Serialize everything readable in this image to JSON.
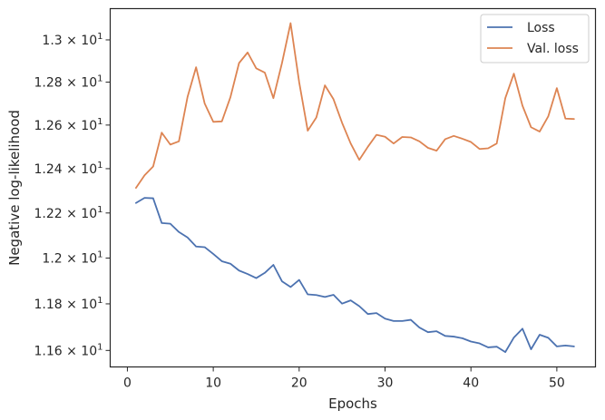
{
  "chart_data": {
    "type": "line",
    "title": "",
    "xlabel": "Epochs",
    "ylabel": "Negative log-likelihood",
    "xlim": [
      -2,
      54.5
    ],
    "ylim": [
      11.53,
      13.15
    ],
    "y_scale": "log",
    "grid": false,
    "legend_position": "top-right",
    "x_ticks": [
      0,
      10,
      20,
      30,
      40,
      50
    ],
    "x_tick_labels": [
      "0",
      "10",
      "20",
      "30",
      "40",
      "50"
    ],
    "y_ticks": [
      11.6,
      11.8,
      12.0,
      12.2,
      12.4,
      12.6,
      12.8,
      13.0
    ],
    "y_tick_mantissas": [
      "1.16",
      "1.18",
      "1.2",
      "1.22",
      "1.24",
      "1.26",
      "1.28",
      "1.3"
    ],
    "y_tick_base": "10",
    "y_tick_exp": "1",
    "y_tick_times": "×",
    "x": [
      1,
      2,
      3,
      4,
      5,
      6,
      7,
      8,
      9,
      10,
      11,
      12,
      13,
      14,
      15,
      16,
      17,
      18,
      19,
      20,
      21,
      22,
      23,
      24,
      25,
      26,
      27,
      28,
      29,
      30,
      31,
      32,
      33,
      34,
      35,
      36,
      37,
      38,
      39,
      40,
      41,
      42,
      43,
      44,
      45,
      46,
      47,
      48,
      49,
      50,
      51,
      52
    ],
    "series": [
      {
        "name": "Loss",
        "color": "#4c72b0",
        "values": [
          12.245,
          12.268,
          12.266,
          12.155,
          12.152,
          12.115,
          12.091,
          12.051,
          12.048,
          12.018,
          11.986,
          11.975,
          11.945,
          11.93,
          11.912,
          11.935,
          11.97,
          11.898,
          11.873,
          11.904,
          11.841,
          11.838,
          11.83,
          11.839,
          11.801,
          11.815,
          11.79,
          11.756,
          11.76,
          11.736,
          11.726,
          11.726,
          11.731,
          11.698,
          11.678,
          11.682,
          11.662,
          11.659,
          11.652,
          11.638,
          11.63,
          11.613,
          11.616,
          11.593,
          11.655,
          11.693,
          11.605,
          11.667,
          11.654,
          11.617,
          11.621,
          11.617
        ]
      },
      {
        "name": "Val. loss",
        "color": "#dd8452",
        "values": [
          12.313,
          12.37,
          12.41,
          12.565,
          12.51,
          12.525,
          12.73,
          12.87,
          12.7,
          12.615,
          12.617,
          12.73,
          12.89,
          12.94,
          12.865,
          12.845,
          12.725,
          12.89,
          13.08,
          12.8,
          12.574,
          12.635,
          12.785,
          12.72,
          12.61,
          12.515,
          12.44,
          12.5,
          12.555,
          12.546,
          12.515,
          12.545,
          12.543,
          12.525,
          12.495,
          12.482,
          12.535,
          12.55,
          12.537,
          12.522,
          12.49,
          12.493,
          12.515,
          12.725,
          12.84,
          12.69,
          12.59,
          12.57,
          12.64,
          12.772,
          12.63,
          12.628
        ]
      }
    ]
  }
}
